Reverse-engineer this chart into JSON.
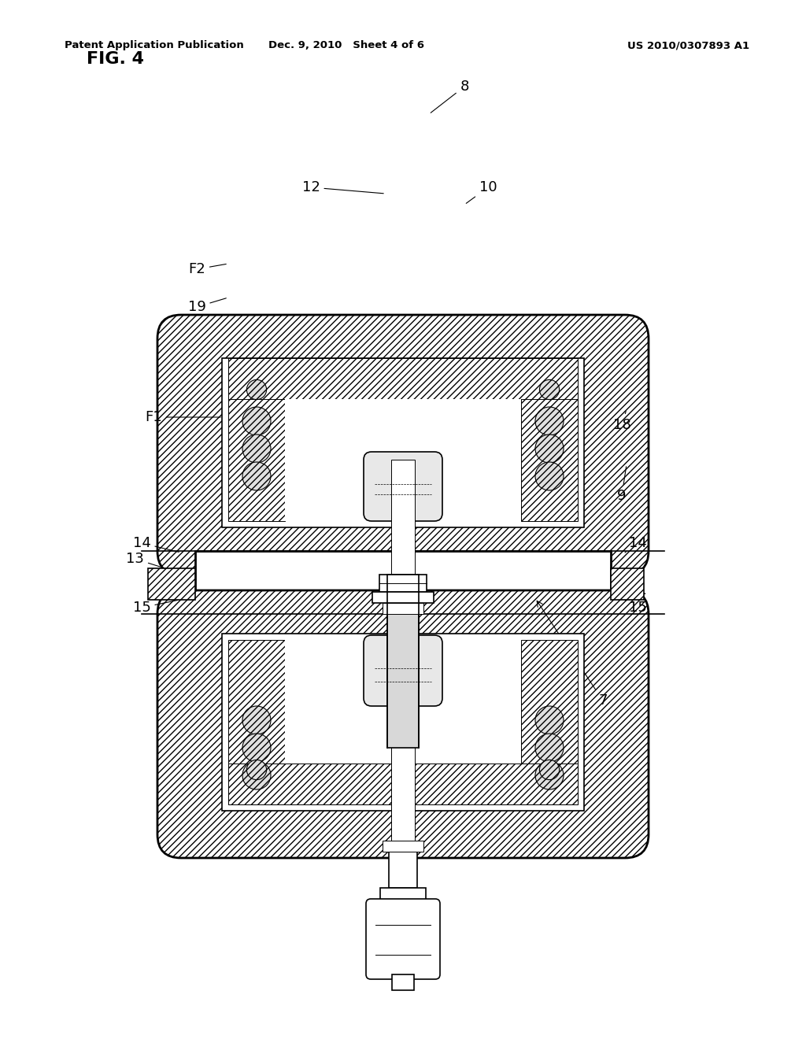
{
  "title": "FIG. 4",
  "header_left": "Patent Application Publication",
  "header_center": "Dec. 9, 2010   Sheet 4 of 6",
  "header_right": "US 2010/0307893 A1",
  "bg": "#ffffff",
  "black": "#000000"
}
